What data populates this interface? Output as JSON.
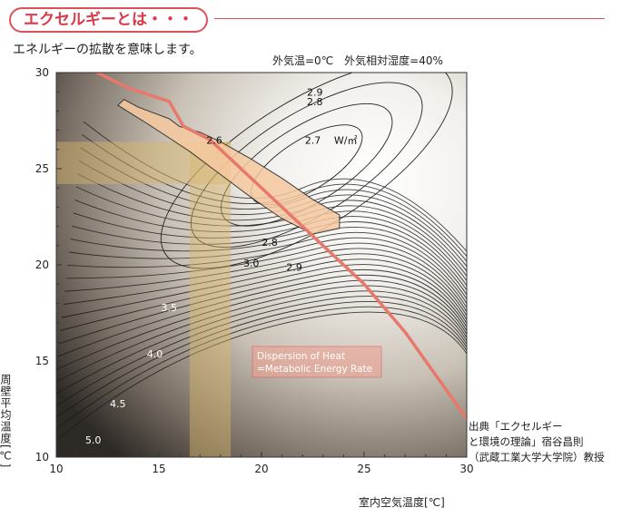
{
  "header": {
    "title": "エクセルギーとは・・・",
    "subtitle": "エネルギーの拡散を意味します。",
    "conditions": "外気温=0℃　外気相対湿度=40%"
  },
  "source": {
    "line1": "出典「エクセルギー",
    "line2": "と環境の理論」宿谷昌則",
    "line3": "（武蔵工業大学大学院）教授"
  },
  "colors": {
    "accent": "#e0505a",
    "curve": "#e8786c",
    "highlight": "#f6c9a0",
    "band": "#d9b56a"
  },
  "chart_data": {
    "type": "contour",
    "xlabel": "室内空気温度[℃]",
    "ylabel": "周壁平均温度[℃]",
    "xlim": [
      10,
      30
    ],
    "ylim": [
      10,
      30
    ],
    "x_ticks": [
      10,
      15,
      20,
      25,
      30
    ],
    "y_ticks": [
      10,
      15,
      20,
      25,
      30
    ],
    "contour_labels": [
      {
        "text": "2.9",
        "x": 22.6,
        "y": 28.8
      },
      {
        "text": "2.8",
        "x": 22.6,
        "y": 28.3
      },
      {
        "text": "2.6",
        "x": 17.7,
        "y": 26.3
      },
      {
        "text": "2.7",
        "x": 22.5,
        "y": 26.3
      },
      {
        "text": "W/㎡",
        "x": 24.1,
        "y": 26.3
      },
      {
        "text": "2.8",
        "x": 20.4,
        "y": 21.0
      },
      {
        "text": "3.0",
        "x": 19.5,
        "y": 19.9
      },
      {
        "text": "2.9",
        "x": 21.6,
        "y": 19.7
      },
      {
        "text": "3.5",
        "x": 15.5,
        "y": 17.6
      },
      {
        "text": "4.0",
        "x": 14.8,
        "y": 15.2
      },
      {
        "text": "4.5",
        "x": 13.0,
        "y": 12.6
      },
      {
        "text": "5.0",
        "x": 11.8,
        "y": 10.7
      }
    ],
    "curve_label": [
      "Dispersion of Heat",
      "=Metabolic Energy Rate"
    ],
    "metabolic_curve": [
      [
        12.0,
        30.0
      ],
      [
        13.5,
        29.2
      ],
      [
        15.5,
        28.5
      ],
      [
        16.2,
        27.2
      ],
      [
        17.5,
        26.5
      ],
      [
        19.0,
        25.0
      ],
      [
        21.0,
        23.0
      ],
      [
        23.0,
        21.0
      ],
      [
        25.0,
        19.0
      ],
      [
        27.0,
        16.5
      ],
      [
        29.0,
        13.5
      ],
      [
        30.0,
        12.0
      ]
    ],
    "min_region": [
      [
        13.3,
        28.6
      ],
      [
        14.0,
        28.2
      ],
      [
        15.5,
        27.6
      ],
      [
        16.0,
        27.2
      ],
      [
        17.0,
        26.9
      ],
      [
        18.0,
        26.4
      ],
      [
        19.5,
        25.5
      ],
      [
        21.0,
        24.5
      ],
      [
        22.5,
        23.4
      ],
      [
        23.8,
        22.6
      ],
      [
        23.8,
        21.9
      ],
      [
        22.5,
        21.6
      ],
      [
        21.0,
        22.4
      ],
      [
        19.5,
        23.5
      ],
      [
        18.0,
        24.7
      ],
      [
        16.5,
        25.9
      ],
      [
        14.5,
        27.3
      ],
      [
        13.0,
        28.3
      ]
    ],
    "band_vertical": [
      16.5,
      18.5
    ],
    "band_horizontal": [
      24.2,
      26.4
    ]
  }
}
